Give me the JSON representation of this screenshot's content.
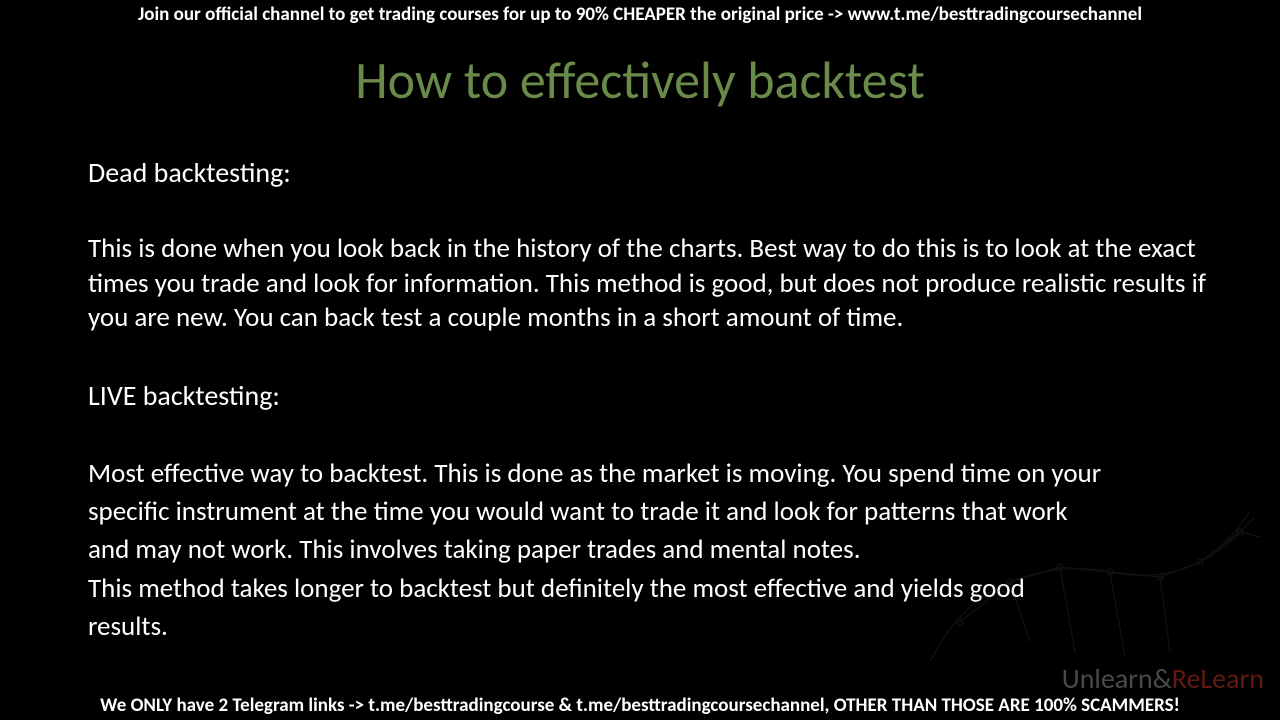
{
  "top_banner": "Join our official channel to get trading courses for up to 90% CHEAPER the original price -> www.t.me/besttradingcoursechannel",
  "title": "How to effectively backtest",
  "section1": {
    "heading": "Dead backtesting:",
    "body": "This is done when you look back in the history of the charts. Best way to do this is to look at the exact times you trade and look for information. This method is good, but does not produce realistic results if you are new. You can back test a couple months in a short amount of time."
  },
  "section2": {
    "heading": "LIVE backtesting:",
    "body": "Most effective way to backtest. This is done as the market is moving. You spend time on your specific instrument at the time you would want to trade it and look for patterns that work and may not work.  This involves taking paper trades and mental notes.\nThis method takes longer to backtest but definitely the most effective and yields good results."
  },
  "bottom_banner": "We ONLY have 2 Telegram links -> t.me/besttradingcourse & t.me/besttradingcoursechannel, OTHER THAN THOSE ARE 100% SCAMMERS!",
  "watermark": {
    "unlearn": "Unlearn",
    "amp": "&",
    "relearn": "ReLearn",
    "sub": ""
  },
  "colors": {
    "background": "#000000",
    "title_color": "#6a8a4a",
    "body_text": "#ffffff",
    "banner_text": "#ffffff",
    "wm_gray": "#888888",
    "wm_red": "#b03020"
  },
  "typography": {
    "title_fontsize": 52,
    "heading_fontsize": 28,
    "body_fontsize": 27,
    "banner_fontsize": 19,
    "watermark_fontsize": 28
  }
}
